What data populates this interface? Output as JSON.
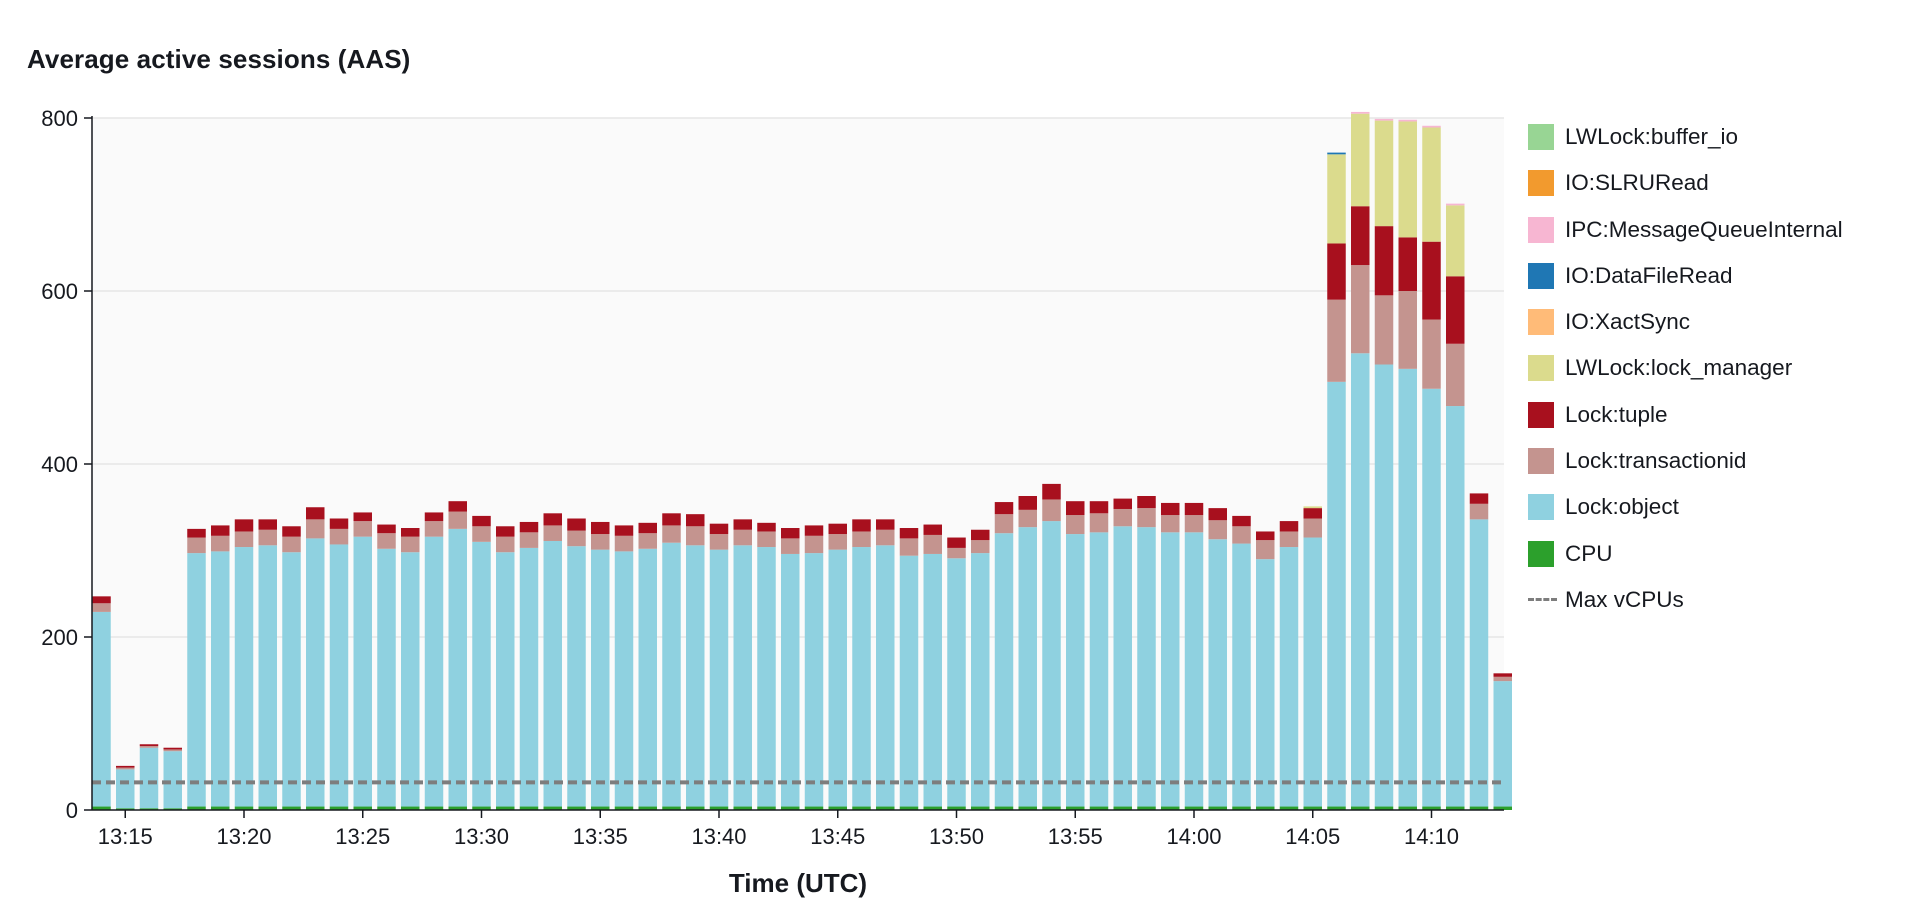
{
  "chart_data": {
    "type": "bar",
    "stacked": true,
    "title": "Average active sessions (AAS)",
    "xlabel": "Time (UTC)",
    "ylabel": "",
    "ylim": [
      0,
      800
    ],
    "y_ticks": [
      0,
      200,
      400,
      600,
      800
    ],
    "x_ticks": [
      "13:15",
      "13:20",
      "13:25",
      "13:30",
      "13:35",
      "13:40",
      "13:45",
      "13:50",
      "13:55",
      "14:00",
      "14:05",
      "14:10"
    ],
    "grid": "horizontal",
    "legend_position": "right",
    "categories": [
      "13:14",
      "13:15",
      "13:16",
      "13:17",
      "13:18",
      "13:19",
      "13:20",
      "13:21",
      "13:22",
      "13:23",
      "13:24",
      "13:25",
      "13:26",
      "13:27",
      "13:28",
      "13:29",
      "13:30",
      "13:31",
      "13:32",
      "13:33",
      "13:34",
      "13:35",
      "13:36",
      "13:37",
      "13:38",
      "13:39",
      "13:40",
      "13:41",
      "13:42",
      "13:43",
      "13:44",
      "13:45",
      "13:46",
      "13:47",
      "13:48",
      "13:49",
      "13:50",
      "13:51",
      "13:52",
      "13:53",
      "13:54",
      "13:55",
      "13:56",
      "13:57",
      "13:58",
      "13:59",
      "14:00",
      "14:01",
      "14:02",
      "14:03",
      "14:04",
      "14:05",
      "14:06",
      "14:07",
      "14:08",
      "14:09",
      "14:10",
      "14:11",
      "14:12",
      "14:13"
    ],
    "series": [
      {
        "name": "CPU",
        "color": "#2ca02c",
        "values": [
          4,
          2,
          2,
          2,
          4,
          4,
          4,
          4,
          4,
          4,
          4,
          4,
          4,
          4,
          4,
          4,
          4,
          4,
          4,
          4,
          4,
          4,
          4,
          4,
          4,
          4,
          4,
          4,
          4,
          4,
          4,
          4,
          4,
          4,
          4,
          4,
          4,
          4,
          4,
          4,
          4,
          4,
          4,
          4,
          4,
          4,
          4,
          4,
          4,
          4,
          4,
          4,
          4,
          4,
          4,
          4,
          4,
          4,
          4,
          4
        ]
      },
      {
        "name": "Lock:object",
        "color": "#8fd1e0",
        "values": [
          225,
          45,
          70,
          66,
          293,
          295,
          300,
          302,
          294,
          310,
          303,
          312,
          298,
          294,
          312,
          321,
          306,
          294,
          299,
          307,
          301,
          297,
          295,
          298,
          305,
          302,
          297,
          302,
          300,
          292,
          293,
          297,
          300,
          302,
          290,
          292,
          287,
          293,
          316,
          323,
          330,
          315,
          317,
          324,
          323,
          317,
          317,
          309,
          304,
          286,
          300,
          311,
          491,
          524,
          511,
          506,
          483,
          463,
          332,
          145
        ]
      },
      {
        "name": "Lock:transactionid",
        "color": "#c4948f",
        "values": [
          10,
          2,
          2,
          2,
          18,
          18,
          18,
          18,
          18,
          22,
          18,
          18,
          18,
          18,
          18,
          20,
          18,
          18,
          18,
          18,
          18,
          18,
          18,
          18,
          20,
          22,
          18,
          18,
          18,
          18,
          20,
          18,
          18,
          18,
          20,
          22,
          12,
          15,
          22,
          20,
          25,
          22,
          22,
          20,
          22,
          20,
          20,
          22,
          20,
          22,
          18,
          22,
          95,
          102,
          80,
          90,
          80,
          72,
          18,
          5
        ]
      },
      {
        "name": "Lock:tuple",
        "color": "#a8101e",
        "values": [
          8,
          2,
          2,
          2,
          10,
          12,
          14,
          12,
          12,
          14,
          12,
          10,
          10,
          10,
          10,
          12,
          12,
          12,
          12,
          14,
          14,
          14,
          12,
          12,
          14,
          14,
          12,
          12,
          10,
          12,
          12,
          12,
          14,
          12,
          12,
          12,
          12,
          12,
          14,
          16,
          18,
          16,
          14,
          12,
          14,
          14,
          14,
          14,
          12,
          10,
          12,
          12,
          65,
          68,
          80,
          62,
          90,
          78,
          12,
          4
        ]
      },
      {
        "name": "LWLock:lock_manager",
        "color": "#dbdb8d",
        "values": [
          0,
          0,
          0,
          0,
          0,
          0,
          0,
          0,
          0,
          0,
          0,
          0,
          0,
          0,
          0,
          0,
          0,
          0,
          0,
          0,
          0,
          0,
          0,
          0,
          0,
          0,
          0,
          0,
          0,
          0,
          0,
          0,
          0,
          0,
          0,
          0,
          0,
          0,
          0,
          0,
          0,
          0,
          0,
          0,
          0,
          0,
          0,
          0,
          0,
          0,
          0,
          2,
          103,
          107,
          122,
          134,
          132,
          82,
          0,
          0
        ]
      },
      {
        "name": "IO:XactSync",
        "color": "#ffbb78",
        "values": [
          0,
          0,
          0,
          0,
          0,
          0,
          0,
          0,
          0,
          0,
          0,
          0,
          0,
          0,
          0,
          0,
          0,
          0,
          0,
          0,
          0,
          0,
          0,
          0,
          0,
          0,
          0,
          0,
          0,
          0,
          0,
          0,
          0,
          0,
          0,
          0,
          0,
          0,
          0,
          0,
          0,
          0,
          0,
          0,
          0,
          0,
          0,
          0,
          0,
          0,
          0,
          0,
          0,
          0,
          0,
          0,
          0,
          0,
          0,
          0
        ]
      },
      {
        "name": "IO:DataFileRead",
        "color": "#1f77b4",
        "values": [
          0,
          0,
          0,
          0,
          0,
          0,
          0,
          0,
          0,
          0,
          0,
          0,
          0,
          0,
          0,
          0,
          0,
          0,
          0,
          0,
          0,
          0,
          0,
          0,
          0,
          0,
          0,
          0,
          0,
          0,
          0,
          0,
          0,
          0,
          0,
          0,
          0,
          0,
          0,
          0,
          0,
          0,
          0,
          0,
          0,
          0,
          0,
          0,
          0,
          0,
          0,
          0,
          2,
          0,
          0,
          0,
          0,
          0,
          0,
          0
        ]
      },
      {
        "name": "IPC:MessageQueueInternal",
        "color": "#f7b6d2",
        "values": [
          0,
          0,
          0,
          0,
          0,
          0,
          0,
          0,
          0,
          0,
          0,
          0,
          0,
          0,
          0,
          0,
          0,
          0,
          0,
          0,
          0,
          0,
          0,
          0,
          0,
          0,
          0,
          0,
          0,
          0,
          0,
          0,
          0,
          0,
          0,
          0,
          0,
          0,
          0,
          0,
          0,
          0,
          0,
          0,
          0,
          0,
          0,
          0,
          0,
          0,
          0,
          0,
          0,
          2,
          2,
          2,
          2,
          2,
          0,
          0
        ]
      },
      {
        "name": "IO:SLRURead",
        "color": "#f29a2e",
        "values": [
          0,
          0,
          0,
          0,
          0,
          0,
          0,
          0,
          0,
          0,
          0,
          0,
          0,
          0,
          0,
          0,
          0,
          0,
          0,
          0,
          0,
          0,
          0,
          0,
          0,
          0,
          0,
          0,
          0,
          0,
          0,
          0,
          0,
          0,
          0,
          0,
          0,
          0,
          0,
          0,
          0,
          0,
          0,
          0,
          0,
          0,
          0,
          0,
          0,
          0,
          0,
          0,
          0,
          0,
          0,
          0,
          0,
          0,
          0,
          0
        ]
      },
      {
        "name": "LWLock:buffer_io",
        "color": "#98d594",
        "values": [
          0,
          0,
          0,
          0,
          0,
          0,
          0,
          0,
          0,
          0,
          0,
          0,
          0,
          0,
          0,
          0,
          0,
          0,
          0,
          0,
          0,
          0,
          0,
          0,
          0,
          0,
          0,
          0,
          0,
          0,
          0,
          0,
          0,
          0,
          0,
          0,
          0,
          0,
          0,
          0,
          0,
          0,
          0,
          0,
          0,
          0,
          0,
          0,
          0,
          0,
          0,
          0,
          0,
          0,
          0,
          0,
          0,
          0,
          0,
          0
        ]
      }
    ],
    "reference_lines": [
      {
        "name": "Max vCPUs",
        "value": 32,
        "style": "dashed",
        "color": "#7d7d7d"
      }
    ]
  },
  "legend": {
    "items": [
      {
        "label": "LWLock:buffer_io",
        "color": "#98d594",
        "kind": "box"
      },
      {
        "label": "IO:SLRURead",
        "color": "#f29a2e",
        "kind": "box"
      },
      {
        "label": "IPC:MessageQueueInternal",
        "color": "#f7b6d2",
        "kind": "box"
      },
      {
        "label": "IO:DataFileRead",
        "color": "#1f77b4",
        "kind": "box"
      },
      {
        "label": "IO:XactSync",
        "color": "#ffbb78",
        "kind": "box"
      },
      {
        "label": "LWLock:lock_manager",
        "color": "#dbdb8d",
        "kind": "box"
      },
      {
        "label": "Lock:tuple",
        "color": "#a8101e",
        "kind": "box"
      },
      {
        "label": "Lock:transactionid",
        "color": "#c4948f",
        "kind": "box"
      },
      {
        "label": "Lock:object",
        "color": "#8fd1e0",
        "kind": "box"
      },
      {
        "label": "CPU",
        "color": "#2ca02c",
        "kind": "box"
      },
      {
        "label": "Max vCPUs",
        "color": "#7d7d7d",
        "kind": "dash"
      }
    ]
  }
}
